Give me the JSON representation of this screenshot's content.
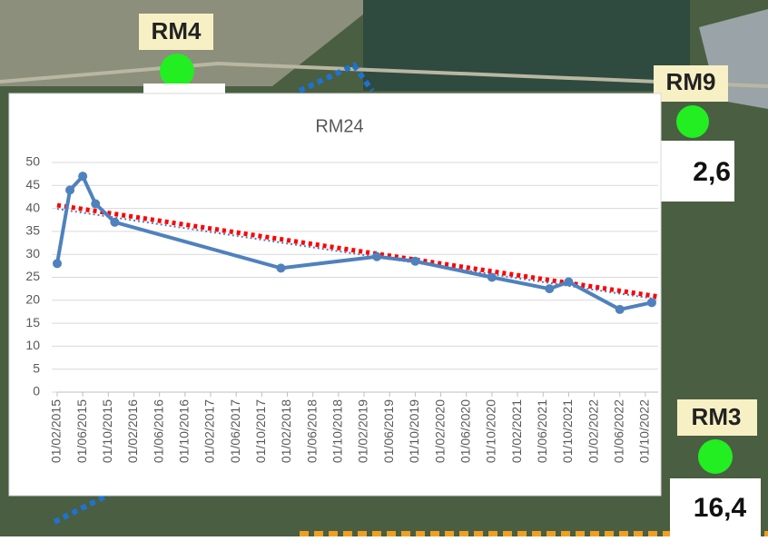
{
  "map": {
    "stations": [
      "RM4",
      "RM9",
      "RM3"
    ],
    "readings": [
      "2,6",
      "16,4"
    ]
  },
  "chart_data": {
    "type": "line",
    "title": "RM24",
    "x": [
      "01/02/2015",
      "01/04/2015",
      "01/06/2015",
      "01/08/2015",
      "01/11/2015",
      "01/01/2018",
      "01/04/2019",
      "01/10/2019",
      "01/10/2020",
      "01/07/2021",
      "01/10/2021",
      "01/06/2022",
      "01/11/2022"
    ],
    "series": [
      {
        "color": "#4f81bd",
        "values": [
          28,
          44,
          47,
          41,
          37,
          27,
          29.5,
          28.5,
          25,
          22.5,
          24,
          18,
          19.5
        ]
      }
    ],
    "trendlines": [
      {
        "color": "#ff0000",
        "x": [
          "01/02/2015",
          "01/12/2022"
        ],
        "values": [
          40.7,
          20.8
        ]
      },
      {
        "color": "#5b7bb5",
        "x": [
          "01/02/2015",
          "01/12/2022"
        ],
        "values": [
          39.9,
          20.2
        ]
      }
    ],
    "xlim": [
      "01/02/2015",
      "01/12/2022"
    ],
    "xticks": [
      "01/02/2015",
      "01/06/2015",
      "01/10/2015",
      "01/02/2016",
      "01/06/2016",
      "01/10/2016",
      "01/02/2017",
      "01/06/2017",
      "01/10/2017",
      "01/02/2018",
      "01/06/2018",
      "01/10/2018",
      "01/02/2019",
      "01/06/2019",
      "01/10/2019",
      "01/02/2020",
      "01/06/2020",
      "01/10/2020",
      "01/02/2021",
      "01/06/2021",
      "01/10/2021",
      "01/02/2022",
      "01/06/2022",
      "01/10/2022"
    ],
    "ylim": [
      0,
      50
    ],
    "yticks": [
      0,
      5,
      10,
      15,
      20,
      25,
      30,
      35,
      40,
      45,
      50
    ],
    "grid": true
  }
}
